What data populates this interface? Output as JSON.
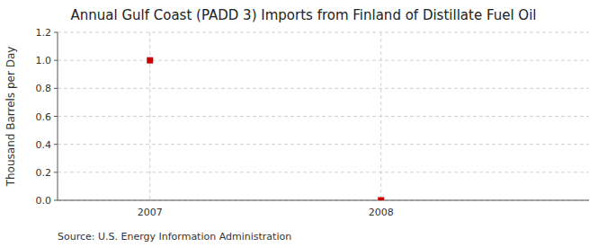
{
  "chart_data": {
    "type": "scatter",
    "title": "Annual Gulf Coast (PADD 3) Imports from Finland of Distillate Fuel Oil",
    "ylabel": "Thousand Barrels per Day",
    "annotations": [
      "Source: U.S. Energy Information Administration"
    ],
    "x": [
      2007,
      2008
    ],
    "values": [
      1.0,
      0.0
    ],
    "color": "#CC0000",
    "marker": "square",
    "xlim": [
      2006.6,
      2008.9
    ],
    "ylim": [
      0.0,
      1.2
    ],
    "xticks": [
      2007,
      2008
    ],
    "yticks": [
      {
        "value": 0.0,
        "label": "0.0"
      },
      0.2,
      0.4,
      0.6,
      0.8,
      {
        "value": 1.0,
        "label": "1.0"
      },
      1.2
    ],
    "grid": true
  }
}
